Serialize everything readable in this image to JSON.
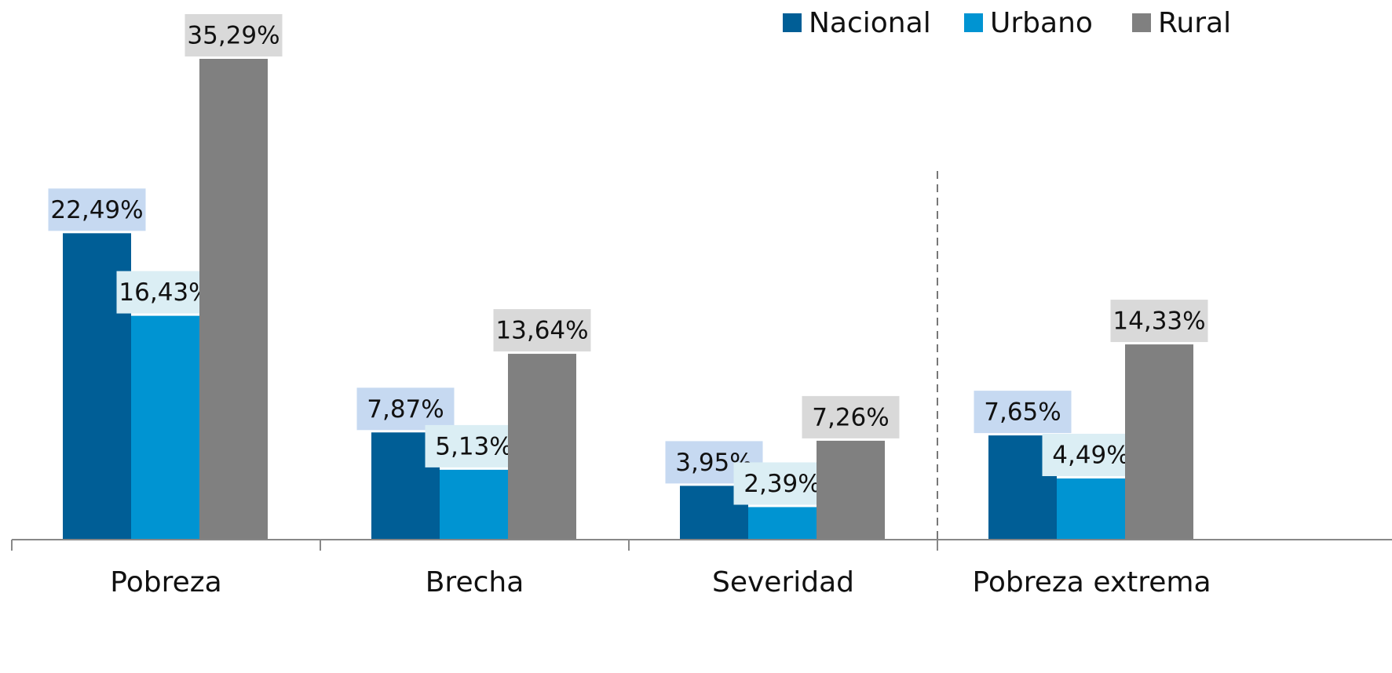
{
  "chart_data": {
    "type": "bar",
    "categories": [
      "Pobreza",
      "Brecha",
      "Severidad",
      "Pobreza extrema"
    ],
    "series": [
      {
        "name": "Nacional",
        "color": "#005e96",
        "values": [
          22.49,
          7.87,
          3.95,
          7.65
        ],
        "value_labels": [
          "22,49%",
          "7,87%",
          "3,95%",
          "7,65%"
        ]
      },
      {
        "name": "Urbano",
        "color": "#0094d2",
        "values": [
          16.43,
          5.13,
          2.39,
          4.49
        ],
        "value_labels": [
          "16,43%",
          "5,13%",
          "2,39%",
          "4,49%"
        ]
      },
      {
        "name": "Rural",
        "color": "#808080",
        "values": [
          35.29,
          13.64,
          7.26,
          14.33
        ],
        "value_labels": [
          "35,29%",
          "13,64%",
          "7,26%",
          "14,33%"
        ]
      }
    ],
    "legend": "top-right"
  }
}
